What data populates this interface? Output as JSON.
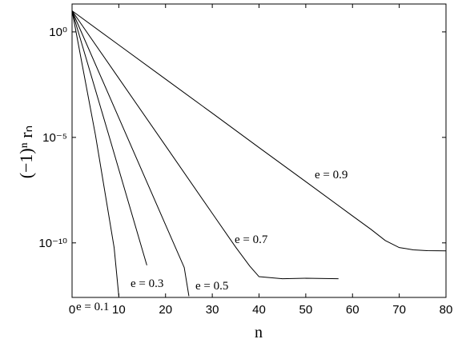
{
  "chart_data": {
    "type": "line",
    "xlabel": "n",
    "ylabel": "(−1)ⁿ rₙ",
    "log_y": true,
    "color": "#000000",
    "xlim": [
      0,
      80
    ],
    "xticks": [
      0,
      10,
      20,
      30,
      40,
      50,
      60,
      70,
      80
    ],
    "ylim": [
      21,
      2.6e-13
    ],
    "yticks": [
      {
        "value": 1,
        "label": "10⁰"
      },
      {
        "value": 1e-05,
        "label": "10⁻⁵"
      },
      {
        "value": 1e-10,
        "label": "10⁻¹⁰"
      }
    ],
    "series": [
      {
        "name": "e = 0.1",
        "x": [
          0,
          5,
          9,
          10
        ],
        "values": [
          10,
          1.3e-05,
          6e-11,
          3e-13
        ]
      },
      {
        "name": "e = 0.3",
        "x": [
          0,
          8,
          16
        ],
        "values": [
          10,
          1e-05,
          8.7e-12
        ]
      },
      {
        "name": "e = 0.5",
        "x": [
          0,
          10,
          20,
          24,
          25
        ],
        "values": [
          10,
          8.5e-05,
          7.2e-10,
          6.8e-12,
          3e-13
        ]
      },
      {
        "name": "e = 0.7",
        "x": [
          0,
          10,
          20,
          30,
          35,
          38,
          40,
          45,
          50,
          57
        ],
        "values": [
          10,
          0.0063,
          4e-06,
          2.5e-09,
          6.3e-11,
          8e-12,
          2.5e-12,
          2e-12,
          2.1e-12,
          2e-12
        ]
      },
      {
        "name": "e = 0.9",
        "x": [
          0,
          10,
          20,
          30,
          40,
          50,
          60,
          64,
          67,
          70,
          73,
          76,
          80
        ],
        "values": [
          10,
          0.24,
          0.0058,
          0.00014,
          3.3e-06,
          8e-08,
          1.9e-09,
          4.3e-10,
          1.3e-10,
          6e-11,
          4.7e-11,
          4.3e-11,
          4.2e-11
        ]
      }
    ]
  }
}
